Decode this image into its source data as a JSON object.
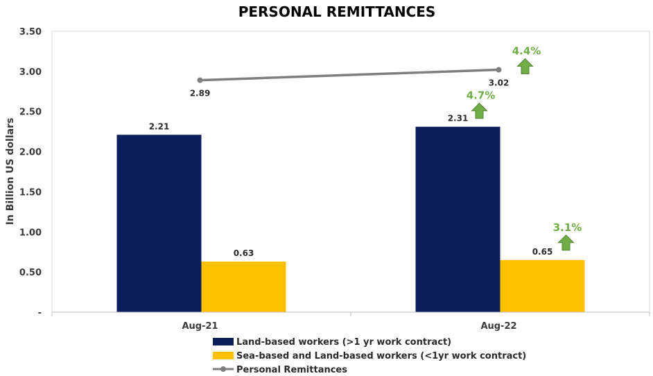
{
  "chart_data": {
    "type": "bar",
    "title": "PERSONAL REMITTANCES",
    "ylabel": "In Billion US dollars",
    "xlabel": "",
    "ylim": [
      0,
      3.5
    ],
    "yticks": [
      {
        "value": 0,
        "label": "-"
      },
      {
        "value": 0.5,
        "label": "0.50"
      },
      {
        "value": 1.0,
        "label": "1.00"
      },
      {
        "value": 1.5,
        "label": "1.50"
      },
      {
        "value": 2.0,
        "label": "2.00"
      },
      {
        "value": 2.5,
        "label": "2.50"
      },
      {
        "value": 3.0,
        "label": "3.00"
      },
      {
        "value": 3.5,
        "label": "3.50"
      }
    ],
    "categories": [
      "Aug-21",
      "Aug-22"
    ],
    "series": [
      {
        "name": "Land-based workers (>1 yr work contract)",
        "kind": "bar",
        "color": "#0b1f5c",
        "values": [
          2.21,
          2.31
        ],
        "labels": [
          "2.21",
          "2.31"
        ]
      },
      {
        "name": "Sea-based and Land-based workers (<1yr work contract)",
        "kind": "bar",
        "color": "#ffc000",
        "values": [
          0.63,
          0.65
        ],
        "labels": [
          "0.63",
          "0.65"
        ]
      },
      {
        "name": "Personal Remittances",
        "kind": "line",
        "color": "#7f7f7f",
        "values": [
          2.89,
          3.02
        ],
        "labels": [
          "2.89",
          "3.02"
        ]
      }
    ],
    "annotations": [
      {
        "text": "4.4%",
        "series": 2,
        "category": 1,
        "direction": "up",
        "color": "#70ad47"
      },
      {
        "text": "4.7%",
        "series": 0,
        "category": 1,
        "direction": "up",
        "color": "#70ad47"
      },
      {
        "text": "3.1%",
        "series": 1,
        "category": 1,
        "direction": "up",
        "color": "#70ad47"
      }
    ],
    "legend_position": "bottom"
  }
}
